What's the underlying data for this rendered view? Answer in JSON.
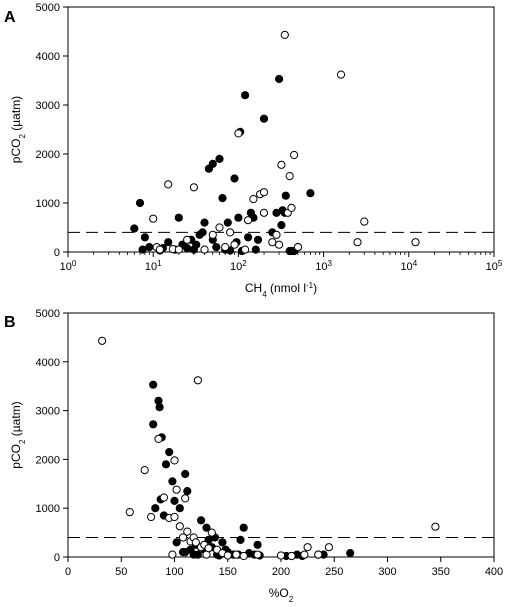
{
  "chart_data": [
    {
      "type": "scatter",
      "panel_label": "A",
      "xscale": "log",
      "xlim": [
        1,
        100000
      ],
      "ylim": [
        0,
        5000
      ],
      "xlabel_parts": [
        "CH",
        "4",
        " (nmol l",
        "-1",
        ")"
      ],
      "ylabel_parts": [
        "pCO",
        "2",
        " (µatm)"
      ],
      "xticks": [
        1,
        10,
        100,
        1000,
        10000,
        100000
      ],
      "xtick_labels": [
        [
          "10",
          "0"
        ],
        [
          "10",
          "1"
        ],
        [
          "10",
          "2"
        ],
        [
          "10",
          "3"
        ],
        [
          "10",
          "4"
        ],
        [
          "10",
          "5"
        ]
      ],
      "yticks": [
        0,
        1000,
        2000,
        3000,
        4000,
        5000
      ],
      "ytick_labels": [
        "0",
        "1000",
        "2000",
        "3000",
        "4000",
        "5000"
      ],
      "reference_line_y": 400,
      "reference_line_style": "dashed",
      "grid": false,
      "legend": "none",
      "series": [
        {
          "marker": "filled-circle",
          "color": "#000000",
          "x": [
            6,
            7,
            7.5,
            8,
            9,
            12,
            13,
            15,
            18,
            20,
            22,
            25,
            28,
            30,
            32,
            35,
            38,
            40,
            45,
            50,
            50,
            55,
            60,
            65,
            70,
            75,
            80,
            90,
            95,
            100,
            105,
            110,
            120,
            130,
            140,
            150,
            160,
            170,
            200,
            250,
            280,
            300,
            320,
            330,
            350,
            360,
            400,
            420,
            450,
            500,
            700
          ],
          "y": [
            480,
            1000,
            50,
            300,
            100,
            30,
            80,
            200,
            50,
            700,
            150,
            80,
            250,
            50,
            150,
            350,
            400,
            600,
            1700,
            250,
            1800,
            100,
            1900,
            1100,
            50,
            600,
            30,
            1500,
            200,
            700,
            2450,
            20,
            3200,
            300,
            800,
            700,
            50,
            250,
            2720,
            400,
            800,
            3530,
            550,
            850,
            800,
            1150,
            20,
            20,
            20,
            100,
            1200
          ]
        },
        {
          "marker": "hollow-circle",
          "color": "#000000",
          "x": [
            10,
            11,
            12,
            15,
            17,
            20,
            25,
            30,
            40,
            50,
            60,
            70,
            80,
            90,
            100,
            120,
            130,
            150,
            180,
            200,
            200,
            250,
            280,
            300,
            320,
            350,
            380,
            400,
            420,
            450,
            500,
            1600,
            2500,
            3000,
            12000
          ],
          "y": [
            680,
            100,
            50,
            1380,
            60,
            50,
            250,
            1320,
            50,
            350,
            500,
            100,
            400,
            150,
            2420,
            50,
            650,
            1080,
            1180,
            1220,
            800,
            200,
            350,
            150,
            1780,
            4430,
            800,
            1550,
            900,
            1980,
            100,
            3620,
            200,
            620,
            200
          ]
        }
      ]
    },
    {
      "type": "scatter",
      "panel_label": "B",
      "xscale": "linear",
      "xlim": [
        0,
        400
      ],
      "ylim": [
        0,
        5000
      ],
      "xlabel_parts": [
        "%O",
        "2",
        "",
        "",
        ""
      ],
      "ylabel_parts": [
        "pCO",
        "2",
        " (µatm)"
      ],
      "xticks": [
        0,
        50,
        100,
        150,
        200,
        250,
        300,
        350,
        400
      ],
      "xtick_labels": [
        [
          "0",
          ""
        ],
        [
          "50",
          ""
        ],
        [
          "100",
          ""
        ],
        [
          "150",
          ""
        ],
        [
          "200",
          ""
        ],
        [
          "250",
          ""
        ],
        [
          "300",
          ""
        ],
        [
          "350",
          ""
        ],
        [
          "400",
          ""
        ]
      ],
      "yticks": [
        0,
        1000,
        2000,
        3000,
        4000,
        5000
      ],
      "ytick_labels": [
        "0",
        "1000",
        "2000",
        "3000",
        "4000",
        "5000"
      ],
      "reference_line_y": 400,
      "reference_line_style": "dashed",
      "grid": false,
      "legend": "none",
      "series": [
        {
          "marker": "filled-circle",
          "color": "#000000",
          "x": [
            80,
            80,
            82,
            85,
            86,
            87,
            88,
            90,
            92,
            95,
            98,
            100,
            102,
            105,
            108,
            110,
            110,
            112,
            115,
            118,
            120,
            122,
            125,
            128,
            130,
            132,
            135,
            138,
            140,
            142,
            145,
            148,
            150,
            155,
            160,
            162,
            165,
            170,
            175,
            178,
            180,
            205,
            210,
            215,
            220,
            235,
            240,
            265
          ],
          "y": [
            3530,
            2720,
            1000,
            3200,
            3070,
            1180,
            2450,
            850,
            1900,
            2150,
            1550,
            1150,
            300,
            1000,
            100,
            100,
            1700,
            1350,
            150,
            50,
            250,
            50,
            750,
            150,
            600,
            350,
            200,
            400,
            50,
            30,
            300,
            150,
            100,
            50,
            50,
            350,
            600,
            80,
            50,
            250,
            30,
            20,
            20,
            50,
            20,
            50,
            50,
            80
          ]
        },
        {
          "marker": "hollow-circle",
          "color": "#000000",
          "x": [
            32,
            58,
            72,
            78,
            85,
            90,
            95,
            98,
            100,
            100,
            102,
            105,
            108,
            110,
            112,
            115,
            118,
            120,
            122,
            125,
            128,
            130,
            132,
            135,
            140,
            145,
            150,
            158,
            165,
            178,
            200,
            210,
            222,
            225,
            235,
            245,
            345
          ],
          "y": [
            4430,
            920,
            1780,
            820,
            2420,
            1220,
            800,
            50,
            1980,
            820,
            1380,
            630,
            400,
            1200,
            520,
            320,
            400,
            300,
            3620,
            200,
            250,
            50,
            180,
            500,
            150,
            80,
            30,
            50,
            20,
            50,
            30,
            20,
            50,
            200,
            50,
            200,
            620
          ]
        }
      ]
    }
  ]
}
